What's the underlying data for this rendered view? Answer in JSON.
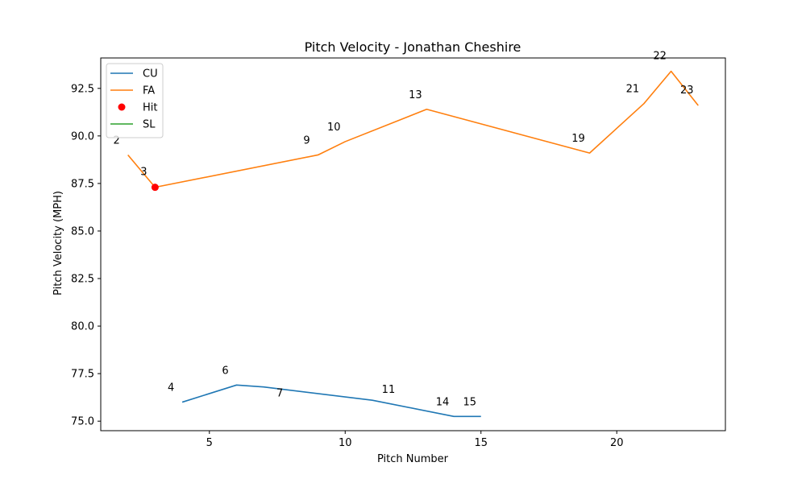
{
  "chart_data": {
    "type": "line",
    "title": "Pitch Velocity - Jonathan Cheshire",
    "xlabel": "Pitch Number",
    "ylabel": "Pitch Velocity (MPH)",
    "xlim": [
      1.0,
      24.0
    ],
    "ylim": [
      74.5,
      94.1
    ],
    "xticks": [
      5,
      10,
      15,
      20
    ],
    "yticks": [
      75.0,
      77.5,
      80.0,
      82.5,
      85.0,
      87.5,
      90.0,
      92.5
    ],
    "grid": false,
    "legend_position": "top-left",
    "series": [
      {
        "name": "CU",
        "kind": "line",
        "color": "#1f77b4",
        "points": [
          {
            "x": 4,
            "y": 76.0,
            "label": "4"
          },
          {
            "x": 6,
            "y": 76.9,
            "label": "6"
          },
          {
            "x": 7,
            "y": 76.8,
            "label": "7"
          },
          {
            "x": 11,
            "y": 76.1,
            "label": "11"
          },
          {
            "x": 14,
            "y": 75.25,
            "label": "14"
          },
          {
            "x": 15,
            "y": 75.25,
            "label": "15"
          }
        ]
      },
      {
        "name": "FA",
        "kind": "line",
        "color": "#ff7f0e",
        "points": [
          {
            "x": 2,
            "y": 89.0,
            "label": "2"
          },
          {
            "x": 3,
            "y": 87.3,
            "label": "3"
          },
          {
            "x": 9,
            "y": 89.0,
            "label": "9"
          },
          {
            "x": 10,
            "y": 89.7,
            "label": "10"
          },
          {
            "x": 13,
            "y": 91.4,
            "label": "13"
          },
          {
            "x": 19,
            "y": 89.1,
            "label": "19"
          },
          {
            "x": 21,
            "y": 91.7,
            "label": "21"
          },
          {
            "x": 22,
            "y": 93.4,
            "label": "22"
          },
          {
            "x": 23,
            "y": 91.6,
            "label": "23"
          }
        ]
      },
      {
        "name": "Hit",
        "kind": "scatter",
        "color": "#ff0000",
        "points": [
          {
            "x": 3,
            "y": 87.3
          }
        ]
      },
      {
        "name": "SL",
        "kind": "line",
        "color": "#2ca02c",
        "points": []
      }
    ]
  }
}
